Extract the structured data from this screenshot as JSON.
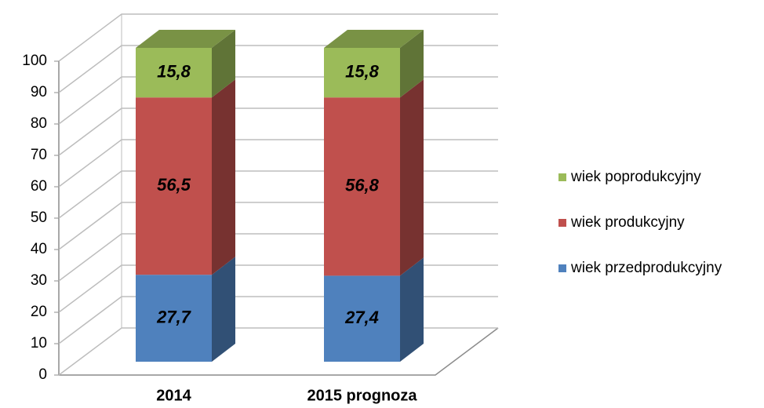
{
  "chart_data": {
    "type": "bar3d_stacked",
    "categories": [
      "2014",
      "2015 prognoza"
    ],
    "series": [
      {
        "name": "wiek przedprodukcyjny",
        "color": "#4f81bd",
        "values": [
          27.7,
          27.4
        ],
        "value_labels": [
          "27,7",
          "27,4"
        ]
      },
      {
        "name": "wiek produkcyjny",
        "color": "#c0504d",
        "values": [
          56.5,
          56.8
        ],
        "value_labels": [
          "56,5",
          "56,8"
        ]
      },
      {
        "name": "wiek poprodukcyjny",
        "color": "#9bbb59",
        "values": [
          15.8,
          15.8
        ],
        "value_labels": [
          "15,8",
          "15,8"
        ]
      }
    ],
    "ylim": [
      0,
      100
    ],
    "yticks": [
      0,
      10,
      20,
      30,
      40,
      50,
      60,
      70,
      80,
      90,
      100
    ],
    "grid": true,
    "legend": "right"
  }
}
